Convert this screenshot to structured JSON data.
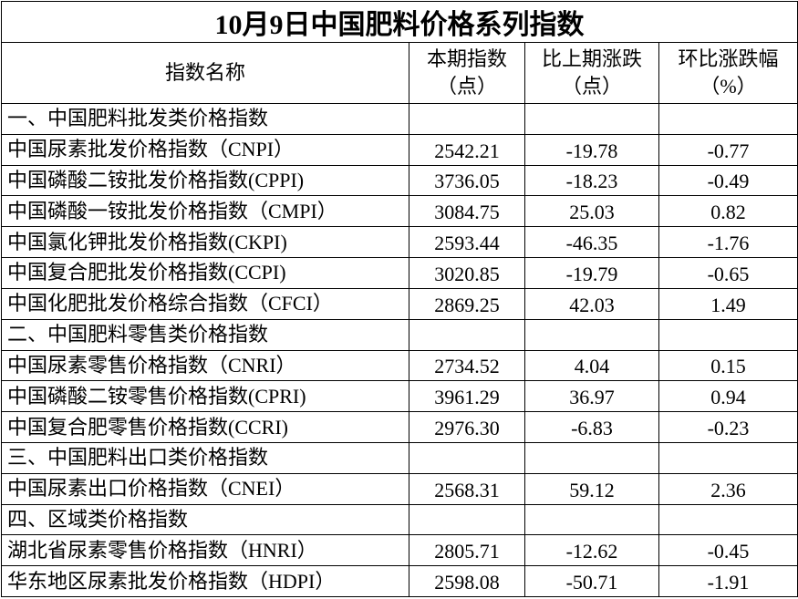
{
  "title": "10月9日中国肥料价格系列指数",
  "table": {
    "header": [
      [
        "指数名称"
      ],
      [
        "本期指数",
        "（点）"
      ],
      [
        "比上期涨跌",
        "（点）"
      ],
      [
        "环比涨跌幅",
        "（%）"
      ]
    ],
    "sections": [
      {
        "title": "一、中国肥料批发类价格指数",
        "rows": [
          [
            "中国尿素批发价格指数（CNPI）",
            "2542.21",
            "-19.78",
            "-0.77"
          ],
          [
            "中国磷酸二铵批发价格指数(CPPI)",
            "3736.05",
            "-18.23",
            "-0.49"
          ],
          [
            "中国磷酸一铵批发价格指数（CMPI）",
            "3084.75",
            "25.03",
            "0.82"
          ],
          [
            "中国氯化钾批发价格指数(CKPI)",
            "2593.44",
            "-46.35",
            "-1.76"
          ],
          [
            "中国复合肥批发价格指数(CCPI)",
            "3020.85",
            "-19.79",
            "-0.65"
          ],
          [
            "中国化肥批发价格综合指数（CFCI）",
            "2869.25",
            "42.03",
            "1.49"
          ]
        ]
      },
      {
        "title": "二、中国肥料零售类价格指数",
        "rows": [
          [
            "中国尿素零售价格指数（CNRI）",
            "2734.52",
            "4.04",
            "0.15"
          ],
          [
            "中国磷酸二铵零售价格指数(CPRI)",
            "3961.29",
            "36.97",
            "0.94"
          ],
          [
            "中国复合肥零售价格指数(CCRI)",
            "2976.30",
            "-6.83",
            "-0.23"
          ]
        ]
      },
      {
        "title": "三、中国肥料出口类价格指数",
        "rows": [
          [
            "中国尿素出口价格指数（CNEI）",
            "2568.31",
            "59.12",
            "2.36"
          ]
        ]
      },
      {
        "title": "四、区域类价格指数",
        "rows": [
          [
            "湖北省尿素零售价格指数（HNRI）",
            "2805.71",
            "-12.62",
            "-0.45"
          ],
          [
            "华东地区尿素批发价格指数（HDPI）",
            "2598.08",
            "-50.71",
            "-1.91"
          ]
        ]
      }
    ]
  }
}
